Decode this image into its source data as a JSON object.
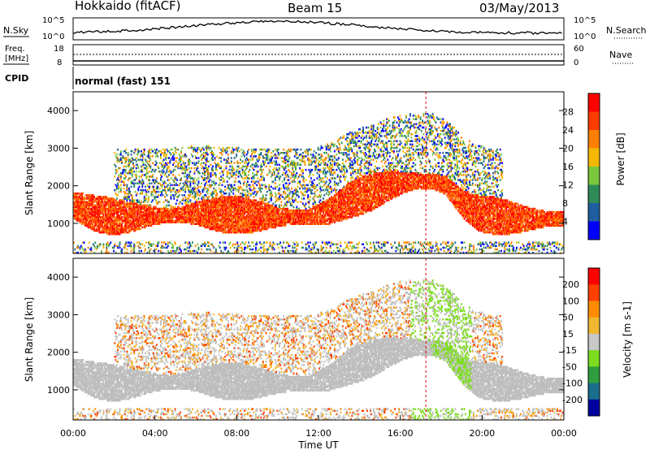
{
  "header": {
    "station": "Hokkaido (fitACF)",
    "beam": "Beam 15",
    "date": "03/May/2013"
  },
  "top_panels": {
    "nsky_label": "N.Sky",
    "nsky_ticks": [
      "10^5",
      "10^0"
    ],
    "nsearch_label": "N.Search",
    "nsearch_ticks": [
      "10^5",
      "10^0"
    ],
    "freq_label_line1": "Freq.",
    "freq_label_line2": "[MHz]",
    "freq_ticks": [
      "18",
      "8"
    ],
    "nave_label": "Nave",
    "nave_ticks": [
      "60",
      "0"
    ],
    "cpid_label": "CPID",
    "cpid_value": "normal (fast) 151"
  },
  "colors": {
    "power_scale": [
      "#0000ff",
      "#1f5fa0",
      "#2e8b57",
      "#7cc63d",
      "#f5b800",
      "#ff7f00",
      "#ff3c00",
      "#ff0000"
    ],
    "velocity_scale": [
      "#0000a0",
      "#1a6e8c",
      "#2e9e3e",
      "#7ddc1f",
      "#c8c8c8",
      "#f0b830",
      "#ff8c00",
      "#ff4000",
      "#ff0000"
    ],
    "ground_scatter": "#bebebe"
  },
  "chart_data": [
    {
      "type": "heatmap",
      "name": "power",
      "ylabel": "Slant Range [km]",
      "ylim": [
        200,
        4500
      ],
      "yticks": [
        "4000",
        "3000",
        "2000",
        "1000"
      ],
      "xlim": [
        0,
        24
      ],
      "xticks": [
        "00:00",
        "04:00",
        "08:00",
        "12:00",
        "16:00",
        "20:00",
        "00:00"
      ],
      "xlabel": "Time UT",
      "colorbar_label": "Power [dB]",
      "colorbar_ticks": [
        "28",
        "24",
        "20",
        "16",
        "12",
        "8",
        "4"
      ],
      "band_center_km": [
        [
          0,
          1450
        ],
        [
          1,
          1250
        ],
        [
          2,
          1150
        ],
        [
          3,
          1150
        ],
        [
          4,
          1180
        ],
        [
          5,
          1200
        ],
        [
          6,
          1250
        ],
        [
          8,
          1200
        ],
        [
          10,
          1150
        ],
        [
          11.5,
          1150
        ],
        [
          12.5,
          1300
        ],
        [
          13.5,
          1600
        ],
        [
          14.5,
          1800
        ],
        [
          15.5,
          2000
        ],
        [
          16.5,
          2100
        ],
        [
          17.5,
          2100
        ],
        [
          18.2,
          2000
        ],
        [
          19,
          1500
        ],
        [
          19.8,
          1250
        ],
        [
          21,
          1150
        ],
        [
          22,
          1100
        ],
        [
          24,
          1100
        ]
      ]
    },
    {
      "type": "heatmap",
      "name": "velocity",
      "ylabel": "Slant Range [km]",
      "ylim": [
        200,
        4500
      ],
      "yticks": [
        "4000",
        "3000",
        "2000",
        "1000"
      ],
      "xlim": [
        0,
        24
      ],
      "xticks": [
        "00:00",
        "04:00",
        "08:00",
        "12:00",
        "16:00",
        "20:00",
        "00:00"
      ],
      "xlabel": "Time UT",
      "colorbar_label": "Velocity [m s-1]",
      "colorbar_ticks": [
        "200",
        "100",
        "50",
        "15",
        "-15",
        "-50",
        "-100",
        "-200"
      ]
    }
  ]
}
